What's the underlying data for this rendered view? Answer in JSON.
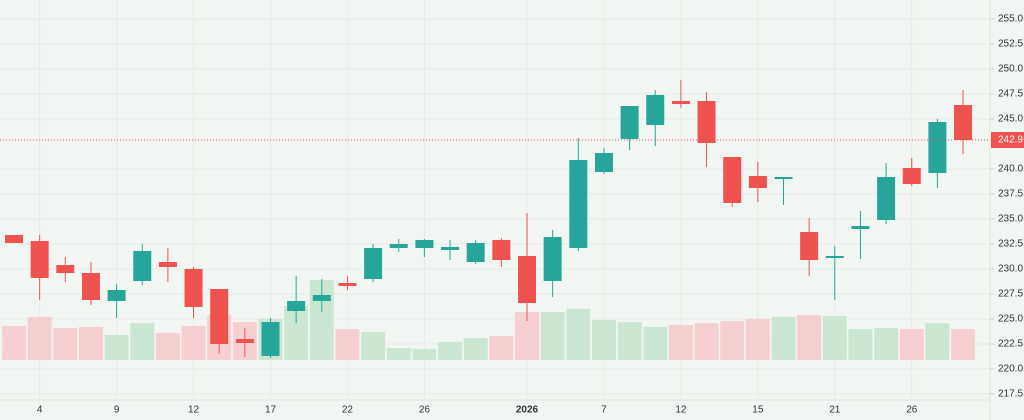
{
  "chart_data": {
    "type": "candlestick",
    "categories": [
      null,
      "4",
      null,
      null,
      "9",
      null,
      null,
      "12",
      null,
      null,
      "17",
      null,
      null,
      "22",
      null,
      null,
      "26",
      null,
      null,
      null,
      "2026",
      null,
      null,
      "7",
      null,
      null,
      "12",
      null,
      null,
      "15",
      null,
      null,
      "21",
      null,
      null,
      "26",
      null,
      null
    ],
    "open": [
      233.4,
      232.8,
      230.4,
      229.6,
      226.8,
      228.8,
      230.7,
      230.0,
      228.0,
      223.0,
      221.3,
      225.8,
      226.8,
      228.6,
      229.0,
      232.1,
      232.1,
      231.9,
      230.7,
      232.9,
      231.3,
      228.8,
      232.1,
      239.7,
      243.0,
      244.4,
      246.8,
      246.8,
      241.2,
      239.3,
      239.0,
      233.7,
      231.1,
      234.0,
      234.9,
      240.1,
      239.6,
      246.4
    ],
    "high": [
      233.4,
      233.4,
      231.2,
      230.7,
      228.5,
      232.5,
      232.1,
      230.2,
      228.0,
      224.1,
      225.1,
      229.3,
      229.0,
      229.3,
      232.5,
      233.0,
      233.0,
      232.9,
      232.9,
      233.1,
      235.6,
      233.9,
      243.1,
      242.1,
      246.3,
      247.9,
      248.9,
      247.7,
      241.2,
      240.7,
      239.2,
      235.1,
      232.3,
      235.8,
      240.6,
      241.1,
      245.0,
      247.9
    ],
    "low": [
      232.6,
      226.9,
      228.7,
      226.4,
      225.1,
      228.4,
      228.7,
      225.1,
      221.5,
      221.2,
      221.1,
      224.6,
      225.7,
      227.9,
      228.7,
      231.7,
      231.2,
      230.9,
      230.5,
      230.2,
      224.8,
      227.2,
      231.8,
      239.5,
      241.9,
      242.3,
      246.1,
      240.2,
      236.2,
      236.7,
      236.4,
      229.3,
      226.9,
      231.0,
      234.5,
      238.3,
      238.1,
      241.5
    ],
    "close": [
      232.6,
      229.1,
      229.6,
      226.9,
      227.9,
      231.8,
      230.2,
      226.2,
      222.5,
      222.6,
      224.7,
      226.8,
      227.4,
      228.3,
      232.1,
      232.5,
      232.9,
      232.2,
      232.6,
      230.9,
      226.6,
      233.2,
      240.9,
      241.6,
      246.3,
      247.4,
      246.5,
      242.6,
      236.6,
      238.1,
      239.2,
      230.9,
      231.3,
      234.3,
      239.2,
      238.5,
      244.7,
      242.9
    ],
    "volume": [
      34,
      43,
      32,
      33,
      25,
      37,
      27,
      34,
      45,
      38,
      41,
      54,
      80,
      31,
      28,
      12,
      11,
      18,
      22,
      24,
      48,
      48,
      51,
      40,
      38,
      33,
      35,
      37,
      39,
      41,
      43,
      45,
      44,
      31,
      32,
      31,
      37,
      31
    ],
    "last_price_label": "242.9",
    "up_color": "#26a69a",
    "down_color": "#ef5350",
    "up_volume_color": "#cbe7d2",
    "down_volume_color": "#f6d0d0",
    "ylim": [
      216.9,
      256.9
    ],
    "yticks": [
      {
        "value": 255,
        "label": "255.0"
      },
      {
        "value": 252.5,
        "label": "252.5"
      },
      {
        "value": 250,
        "label": "250.0"
      },
      {
        "value": 247.5,
        "label": "247.5"
      },
      {
        "value": 245,
        "label": "245.0"
      },
      {
        "value": 240,
        "label": "240.0"
      },
      {
        "value": 237.5,
        "label": "237.5"
      },
      {
        "value": 235,
        "label": "235.0"
      },
      {
        "value": 232.5,
        "label": "232.5"
      },
      {
        "value": 230,
        "label": "230.0"
      },
      {
        "value": 227.5,
        "label": "227.5"
      },
      {
        "value": 225,
        "label": "225.0"
      },
      {
        "value": 222.5,
        "label": "222.5"
      },
      {
        "value": 220,
        "label": "220.0"
      },
      {
        "value": 217.5,
        "label": "217.5"
      }
    ],
    "grid": true
  }
}
